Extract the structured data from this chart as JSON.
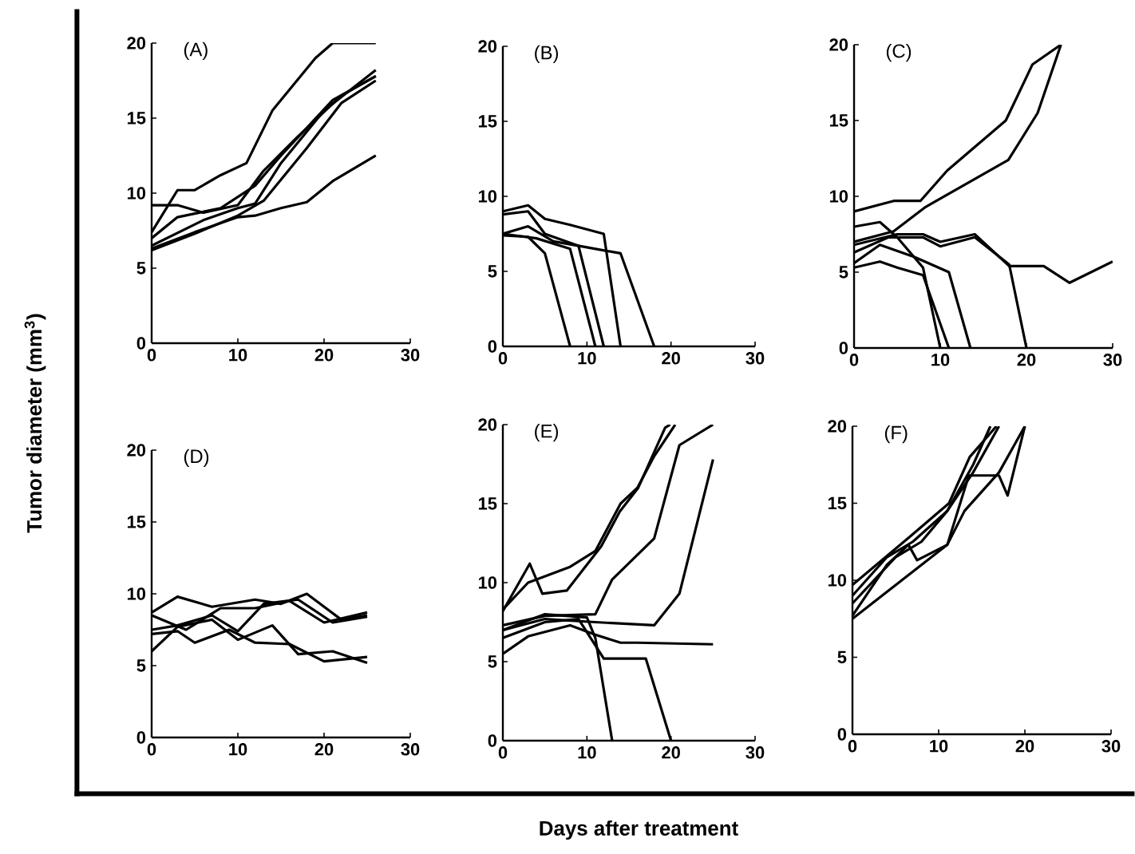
{
  "chart_data": [
    {
      "type": "line",
      "title": "(A)",
      "ylabel": "Tumor diameter (mm$^{3}$)",
      "xlim": [
        0,
        30
      ],
      "ylim": [
        0,
        20
      ],
      "xticks": [
        0,
        10,
        20,
        30
      ],
      "yticks": [
        0,
        5,
        10,
        15,
        20
      ],
      "series": [
        {
          "color": "#000000",
          "x": [
            0,
            3,
            5,
            8,
            11,
            14,
            19,
            21,
            26
          ],
          "values": [
            7.4,
            10.2,
            10.2,
            11.2,
            12,
            15.5,
            19,
            20,
            20
          ]
        },
        {
          "color": "#000000",
          "x": [
            0,
            3,
            6,
            10,
            13,
            17,
            22,
            26
          ],
          "values": [
            9.2,
            9.2,
            8.7,
            9.2,
            11.5,
            13.8,
            16.5,
            17.8
          ]
        },
        {
          "color": "#000000",
          "x": [
            0,
            5,
            10,
            12,
            15,
            18,
            21,
            26
          ],
          "values": [
            6.3,
            7.4,
            8.4,
            8.5,
            9,
            9.4,
            10.8,
            12.5
          ]
        },
        {
          "color": "#000000",
          "x": [
            0,
            6,
            10,
            12,
            15,
            20,
            26
          ],
          "values": [
            6.5,
            8.2,
            9,
            9.3,
            12,
            15.5,
            18.2
          ]
        },
        {
          "color": "#000000",
          "x": [
            0,
            3,
            8,
            12,
            15,
            21,
            26
          ],
          "values": [
            7,
            8.4,
            9,
            10.5,
            12.5,
            16.2,
            17.8
          ]
        },
        {
          "color": "#000000",
          "x": [
            0,
            5,
            10,
            13,
            18,
            22,
            26
          ],
          "values": [
            6.2,
            7.3,
            8.5,
            9.5,
            13,
            16,
            17.5
          ]
        }
      ]
    },
    {
      "type": "line",
      "title": "(B)",
      "xlim": [
        0,
        30
      ],
      "ylim": [
        0,
        20
      ],
      "xticks": [
        0,
        10,
        20,
        30
      ],
      "yticks": [
        0,
        5,
        10,
        15,
        20
      ],
      "series": [
        {
          "color": "#000000",
          "x": [
            0,
            3,
            5,
            8,
            12,
            14
          ],
          "values": [
            9,
            9.4,
            8.5,
            8.1,
            7.5,
            0
          ]
        },
        {
          "color": "#000000",
          "x": [
            0,
            3,
            6,
            10,
            14,
            18
          ],
          "values": [
            7.5,
            8,
            7,
            6.6,
            6.2,
            0
          ]
        },
        {
          "color": "#000000",
          "x": [
            0,
            4,
            8,
            11
          ],
          "values": [
            7.5,
            7.2,
            6.5,
            0
          ]
        },
        {
          "color": "#000000",
          "x": [
            0,
            3,
            5,
            8
          ],
          "values": [
            7.4,
            7.3,
            6.2,
            0
          ]
        },
        {
          "color": "#000000",
          "x": [
            0,
            3,
            5,
            9,
            12
          ],
          "values": [
            8.8,
            9,
            7.5,
            6.7,
            0
          ]
        }
      ]
    },
    {
      "type": "line",
      "title": "(C)",
      "xlim": [
        0,
        30
      ],
      "ylim": [
        0,
        20
      ],
      "xticks": [
        0,
        10,
        20,
        30
      ],
      "yticks": [
        0,
        5,
        10,
        15,
        20
      ],
      "series": [
        {
          "color": "#000000",
          "x": [
            0,
            4.6,
            7.7,
            10.8,
            17.6,
            20.7,
            24
          ],
          "values": [
            9,
            9.7,
            9.7,
            11.7,
            15,
            18.7,
            20
          ]
        },
        {
          "color": "#000000",
          "x": [
            0,
            4.6,
            8.3,
            17.9,
            21.3,
            24
          ],
          "values": [
            7,
            7.7,
            9.3,
            12.4,
            15.5,
            20
          ]
        },
        {
          "color": "#000000",
          "x": [
            0,
            5,
            8,
            10,
            14,
            18,
            22,
            25,
            30
          ],
          "values": [
            6.8,
            7.5,
            7.5,
            7,
            7.5,
            5.4,
            5.4,
            4.3,
            5.7
          ]
        },
        {
          "color": "#000000",
          "x": [
            0,
            4,
            8,
            10,
            14,
            18,
            20
          ],
          "values": [
            6.3,
            7.3,
            7.3,
            6.7,
            7.3,
            5.5,
            0
          ]
        },
        {
          "color": "#000000",
          "x": [
            0,
            3,
            7,
            11,
            13.5
          ],
          "values": [
            5.6,
            6.8,
            6,
            5,
            0
          ]
        },
        {
          "color": "#000000",
          "x": [
            0,
            3,
            5,
            8,
            10
          ],
          "values": [
            8,
            8.3,
            7.3,
            5.3,
            0
          ]
        },
        {
          "color": "#000000",
          "x": [
            0,
            3,
            5,
            8,
            11
          ],
          "values": [
            5.3,
            5.7,
            5.3,
            4.8,
            0
          ]
        }
      ]
    },
    {
      "type": "line",
      "title": "(D)",
      "xlim": [
        0,
        30
      ],
      "ylim": [
        0,
        20
      ],
      "xticks": [
        0,
        10,
        20,
        30
      ],
      "yticks": [
        0,
        5,
        10,
        15,
        20
      ],
      "series": [
        {
          "color": "#000000",
          "x": [
            0,
            3,
            7,
            12,
            15,
            18,
            22,
            25
          ],
          "values": [
            8.7,
            9.8,
            9.1,
            9.6,
            9.3,
            10,
            8.2,
            8.5
          ]
        },
        {
          "color": "#000000",
          "x": [
            0,
            4,
            8,
            12,
            16,
            20,
            25
          ],
          "values": [
            8.5,
            7.5,
            9,
            9,
            9.5,
            8,
            8.7
          ]
        },
        {
          "color": "#000000",
          "x": [
            0,
            3,
            5,
            9,
            12,
            16,
            20,
            25
          ],
          "values": [
            7.2,
            7.4,
            6.6,
            7.5,
            6.6,
            6.5,
            5.3,
            5.6
          ]
        },
        {
          "color": "#000000",
          "x": [
            0,
            3,
            7,
            10,
            14,
            17,
            21,
            25
          ],
          "values": [
            6,
            7.7,
            8.2,
            6.8,
            7.8,
            5.8,
            6,
            5.2
          ]
        },
        {
          "color": "#000000",
          "x": [
            0,
            3,
            7,
            10,
            13,
            17,
            21,
            25
          ],
          "values": [
            7.5,
            7.8,
            8.5,
            7.4,
            9.3,
            9.6,
            8,
            8.4
          ]
        }
      ]
    },
    {
      "type": "line",
      "title": "(E)",
      "xlabel": "Days after treatment",
      "xlim": [
        0,
        30
      ],
      "ylim": [
        0,
        20
      ],
      "xticks": [
        0,
        10,
        20,
        30
      ],
      "yticks": [
        0,
        5,
        10,
        15,
        20
      ],
      "series": [
        {
          "color": "#000000",
          "x": [
            0,
            3.2,
            4.7,
            7.6,
            11.7,
            13.9,
            16.1,
            19.3,
            19.9
          ],
          "values": [
            8.2,
            11.2,
            9.3,
            9.5,
            12.3,
            14.5,
            16,
            19.8,
            20
          ]
        },
        {
          "color": "#000000",
          "x": [
            0,
            3,
            8,
            11,
            14,
            16,
            18,
            20.5
          ],
          "values": [
            8.3,
            10,
            11,
            12,
            15,
            16,
            18,
            20
          ]
        },
        {
          "color": "#000000",
          "x": [
            0,
            5,
            11,
            13,
            18,
            21,
            25
          ],
          "values": [
            7.3,
            7.9,
            8,
            10.2,
            12.8,
            18.7,
            20
          ]
        },
        {
          "color": "#000000",
          "x": [
            0,
            5,
            11,
            18,
            21,
            25
          ],
          "values": [
            7,
            7.7,
            7.5,
            7.3,
            9.3,
            17.8
          ]
        },
        {
          "color": "#000000",
          "x": [
            0,
            3,
            8,
            11,
            14,
            16,
            25
          ],
          "values": [
            5.5,
            6.6,
            7.3,
            6.7,
            6.2,
            6.2,
            6.1
          ]
        },
        {
          "color": "#000000",
          "x": [
            0,
            5,
            10,
            11,
            13
          ],
          "values": [
            7,
            8,
            7.8,
            6.5,
            0
          ]
        },
        {
          "color": "#000000",
          "x": [
            0,
            5,
            9,
            12,
            17,
            20
          ],
          "values": [
            6.5,
            7.5,
            7.7,
            5.2,
            5.2,
            0
          ]
        }
      ]
    },
    {
      "type": "line",
      "title": "(F)",
      "xlim": [
        0,
        30
      ],
      "ylim": [
        0,
        20
      ],
      "xticks": [
        0,
        10,
        20,
        30
      ],
      "yticks": [
        0,
        5,
        10,
        15,
        20
      ],
      "series": [
        {
          "color": "#000000",
          "x": [
            0,
            6.6,
            11.2,
            13.6,
            16.7
          ],
          "values": [
            9.7,
            12.8,
            15,
            18,
            20
          ]
        },
        {
          "color": "#000000",
          "x": [
            0,
            5,
            8,
            11,
            14,
            17
          ],
          "values": [
            8.5,
            11.5,
            12.5,
            14.5,
            17,
            20
          ]
        },
        {
          "color": "#000000",
          "x": [
            0,
            4,
            6.5,
            7.5,
            11,
            13.5,
            17,
            18,
            20
          ],
          "values": [
            7.7,
            11,
            12.3,
            11.3,
            12.3,
            16.8,
            16.8,
            15.5,
            20
          ]
        },
        {
          "color": "#000000",
          "x": [
            0,
            11,
            13,
            17,
            20
          ],
          "values": [
            7.5,
            12.3,
            14.5,
            17,
            20
          ]
        },
        {
          "color": "#000000",
          "x": [
            0,
            4,
            7,
            11,
            14,
            16
          ],
          "values": [
            9,
            11.5,
            12.5,
            14.5,
            17.5,
            20
          ]
        }
      ]
    }
  ]
}
